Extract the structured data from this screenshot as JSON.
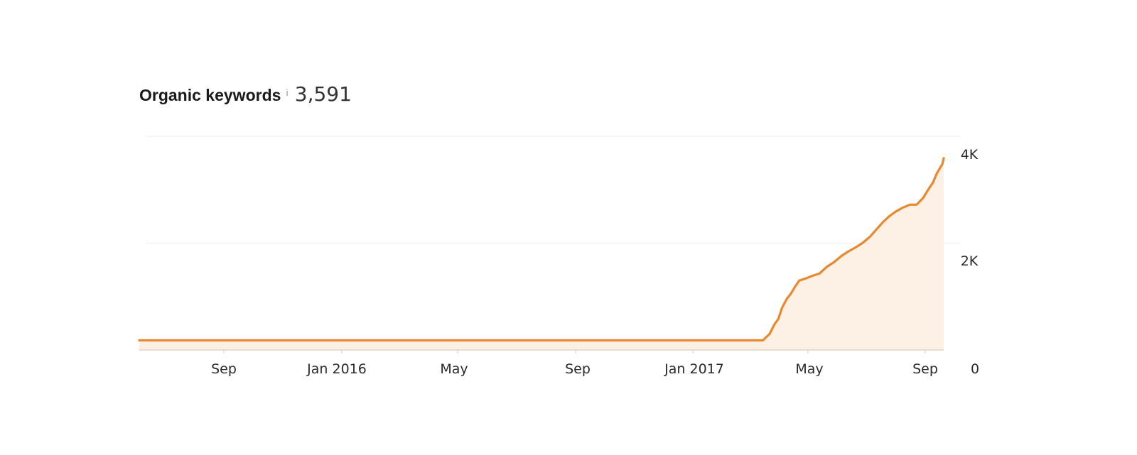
{
  "header": {
    "title": "Organic keywords",
    "info_icon": "i",
    "metric_value": "3,591"
  },
  "chart_data": {
    "type": "area",
    "title": "Organic keywords",
    "xlabel": "",
    "ylabel": "",
    "x_tick_labels": [
      "Sep",
      "Jan 2016",
      "May",
      "Sep",
      "Jan 2017",
      "May",
      "Sep"
    ],
    "y_tick_labels": [
      "0",
      "2K",
      "4K"
    ],
    "y_ticks": [
      0,
      2000,
      4000
    ],
    "ylim": [
      0,
      4000
    ],
    "grid": "horizontal",
    "colors": {
      "line": "#e8892f",
      "fill": "#fdeee0",
      "grid": "#eeeeee",
      "axis": "#e2d3c4"
    },
    "series": [
      {
        "x": [
          "2015-05-22",
          "2015-07-01",
          "2015-09-01",
          "2015-11-01",
          "2016-01-01",
          "2016-03-01",
          "2016-05-01",
          "2016-07-01",
          "2016-09-01",
          "2016-11-01",
          "2017-01-01",
          "2017-03-01",
          "2017-03-15",
          "2017-03-22",
          "2017-03-27",
          "2017-03-31",
          "2017-04-04",
          "2017-04-09",
          "2017-04-13",
          "2017-04-18",
          "2017-04-22",
          "2017-04-29",
          "2017-05-06",
          "2017-05-13",
          "2017-05-21",
          "2017-05-28",
          "2017-06-05",
          "2017-06-12",
          "2017-06-20",
          "2017-06-27",
          "2017-07-05",
          "2017-07-11",
          "2017-07-18",
          "2017-07-25",
          "2017-08-01",
          "2017-08-08",
          "2017-08-16",
          "2017-08-23",
          "2017-08-30",
          "2017-09-04",
          "2017-09-09",
          "2017-09-13",
          "2017-09-19",
          "2017-09-24"
        ],
        "values": [
          180,
          180,
          180,
          180,
          180,
          180,
          180,
          180,
          180,
          180,
          180,
          180,
          180,
          300,
          480,
          580,
          790,
          960,
          1050,
          1200,
          1300,
          1340,
          1390,
          1430,
          1560,
          1640,
          1760,
          1840,
          1920,
          2000,
          2120,
          2240,
          2380,
          2500,
          2590,
          2660,
          2720,
          2720,
          2850,
          3000,
          3130,
          3300,
          3480,
          3591
        ]
      }
    ]
  }
}
